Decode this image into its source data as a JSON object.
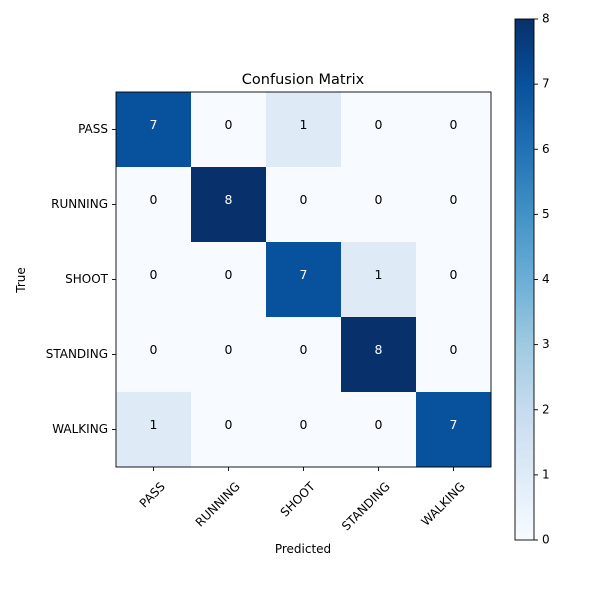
{
  "chart_data": {
    "type": "heatmap",
    "title": "Confusion Matrix",
    "xlabel": "Predicted",
    "ylabel": "True",
    "x_categories": [
      "PASS",
      "RUNNING",
      "SHOOT",
      "STANDING",
      "WALKING"
    ],
    "y_categories": [
      "PASS",
      "RUNNING",
      "SHOOT",
      "STANDING",
      "WALKING"
    ],
    "matrix": [
      [
        7,
        0,
        1,
        0,
        0
      ],
      [
        0,
        8,
        0,
        0,
        0
      ],
      [
        0,
        0,
        7,
        1,
        0
      ],
      [
        0,
        0,
        0,
        8,
        0
      ],
      [
        1,
        0,
        0,
        0,
        7
      ]
    ],
    "colormap": "Blues",
    "colorbar": {
      "min": 0,
      "max": 8,
      "ticks": [
        "0",
        "1",
        "2",
        "3",
        "4",
        "5",
        "6",
        "7",
        "8"
      ]
    },
    "grid": false,
    "text_colors": {
      "light": "#ffffff",
      "dark": "#000000"
    }
  }
}
